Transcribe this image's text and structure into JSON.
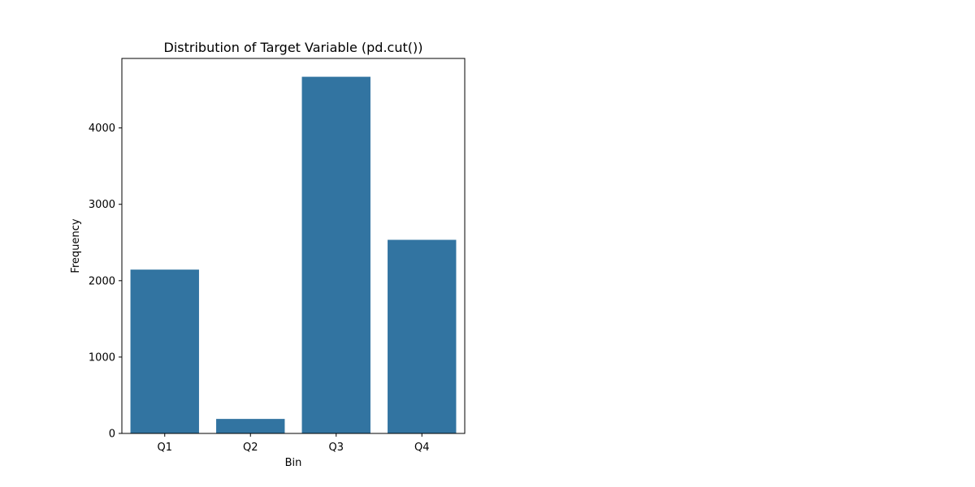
{
  "chart_data": {
    "type": "bar",
    "title": "Distribution of Target Variable (pd.cut())",
    "xlabel": "Bin",
    "ylabel": "Frequency",
    "categories": [
      "Q1",
      "Q2",
      "Q3",
      "Q4"
    ],
    "values": [
      2145,
      190,
      4670,
      2535
    ],
    "ylim": [
      0,
      4910
    ],
    "yticks": [
      0,
      1000,
      2000,
      3000,
      4000
    ],
    "grid": false,
    "bar_color": "#3274a1",
    "axis_color": "#000000"
  }
}
